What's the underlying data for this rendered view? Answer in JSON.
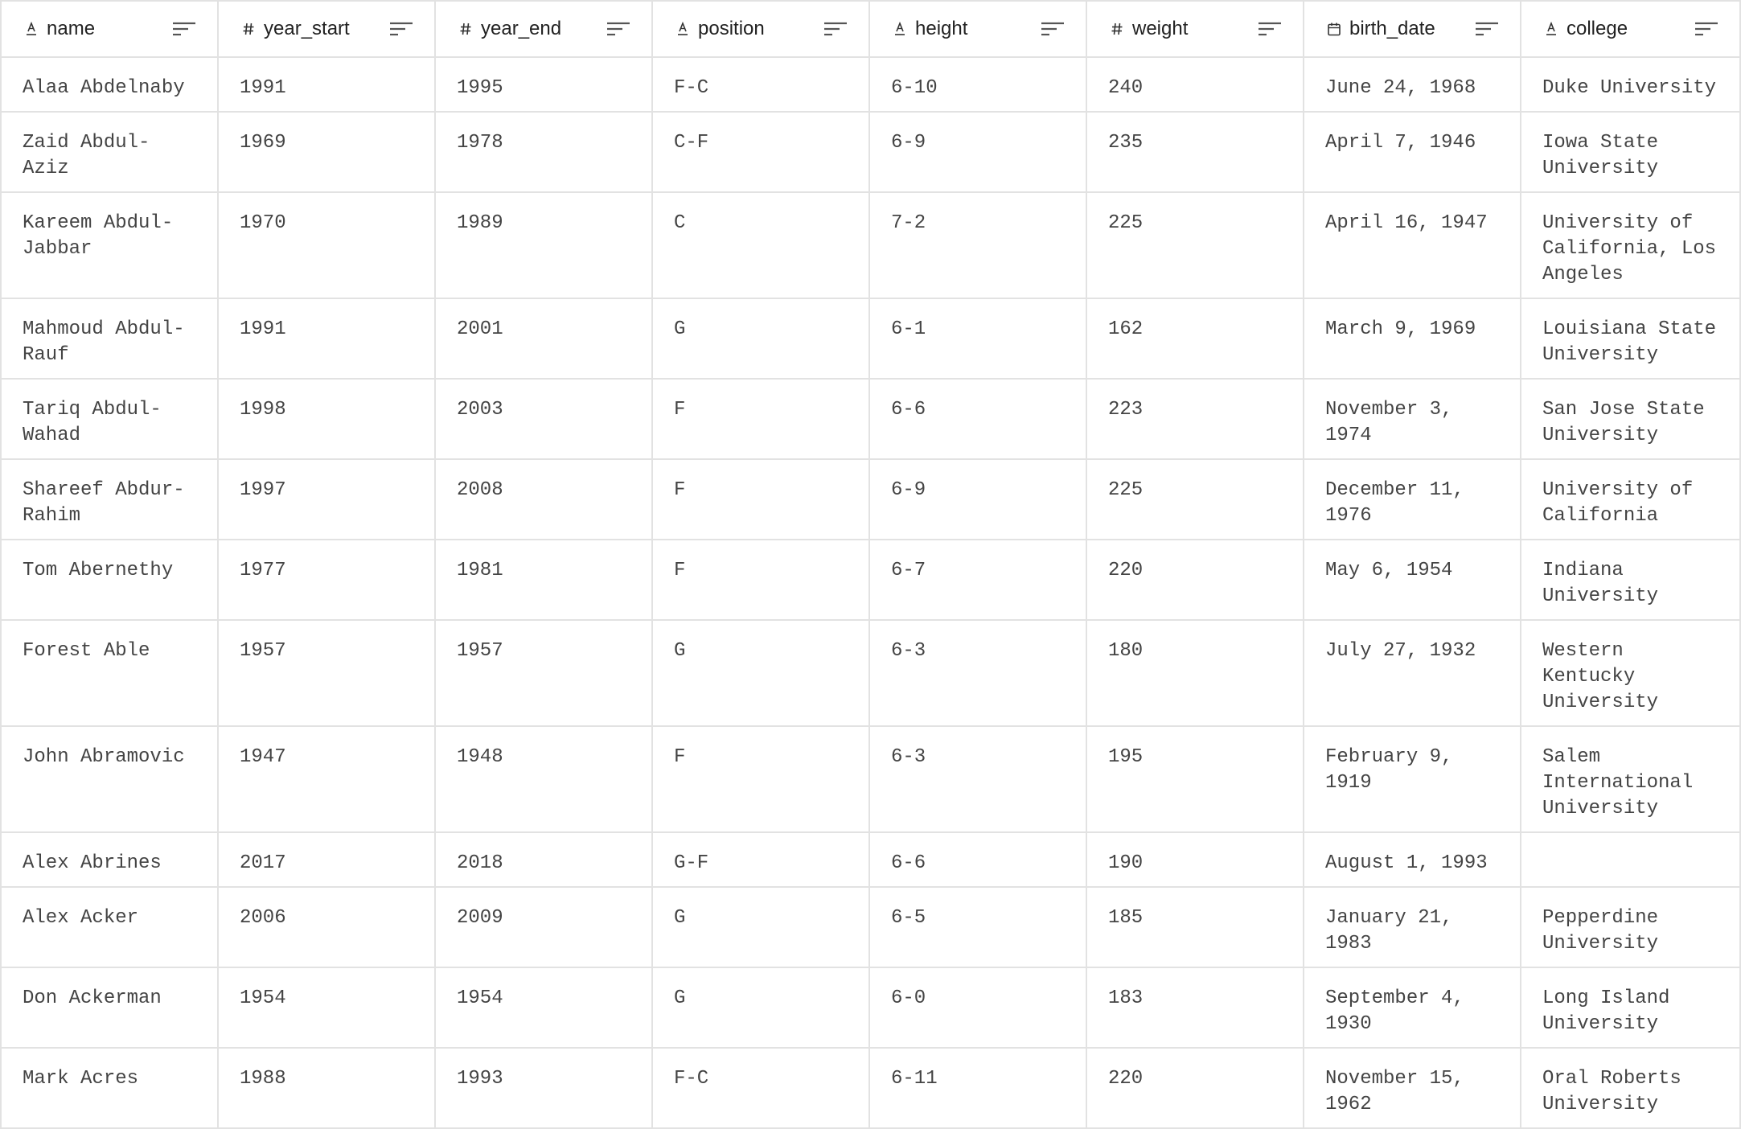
{
  "columns": [
    {
      "key": "name",
      "label": "name",
      "type_icon": "text-type-icon"
    },
    {
      "key": "year_start",
      "label": "year_start",
      "type_icon": "number-type-icon"
    },
    {
      "key": "year_end",
      "label": "year_end",
      "type_icon": "number-type-icon"
    },
    {
      "key": "position",
      "label": "position",
      "type_icon": "text-type-icon"
    },
    {
      "key": "height",
      "label": "height",
      "type_icon": "text-type-icon"
    },
    {
      "key": "weight",
      "label": "weight",
      "type_icon": "number-type-icon"
    },
    {
      "key": "birth_date",
      "label": "birth_date",
      "type_icon": "calendar-type-icon"
    },
    {
      "key": "college",
      "label": "college",
      "type_icon": "text-type-icon"
    }
  ],
  "rows": [
    {
      "name": "Alaa Abdelnaby",
      "year_start": "1991",
      "year_end": "1995",
      "position": "F-C",
      "height": "6-10",
      "weight": "240",
      "birth_date": "June 24, 1968",
      "college": "Duke University"
    },
    {
      "name": "Zaid Abdul-Aziz",
      "year_start": "1969",
      "year_end": "1978",
      "position": "C-F",
      "height": "6-9",
      "weight": "235",
      "birth_date": "April 7, 1946",
      "college": "Iowa State University"
    },
    {
      "name": "Kareem Abdul-Jabbar",
      "year_start": "1970",
      "year_end": "1989",
      "position": "C",
      "height": "7-2",
      "weight": "225",
      "birth_date": "April 16, 1947",
      "college": "University of California, Los Angeles"
    },
    {
      "name": "Mahmoud Abdul-Rauf",
      "year_start": "1991",
      "year_end": "2001",
      "position": "G",
      "height": "6-1",
      "weight": "162",
      "birth_date": "March 9, 1969",
      "college": "Louisiana State University"
    },
    {
      "name": "Tariq Abdul-Wahad",
      "year_start": "1998",
      "year_end": "2003",
      "position": "F",
      "height": "6-6",
      "weight": "223",
      "birth_date": "November 3, 1974",
      "college": "San Jose State University"
    },
    {
      "name": "Shareef Abdur-Rahim",
      "year_start": "1997",
      "year_end": "2008",
      "position": "F",
      "height": "6-9",
      "weight": "225",
      "birth_date": "December 11, 1976",
      "college": "University of California"
    },
    {
      "name": "Tom Abernethy",
      "year_start": "1977",
      "year_end": "1981",
      "position": "F",
      "height": "6-7",
      "weight": "220",
      "birth_date": "May 6, 1954",
      "college": "Indiana University"
    },
    {
      "name": "Forest Able",
      "year_start": "1957",
      "year_end": "1957",
      "position": "G",
      "height": "6-3",
      "weight": "180",
      "birth_date": "July 27, 1932",
      "college": "Western Kentucky University"
    },
    {
      "name": "John Abramovic",
      "year_start": "1947",
      "year_end": "1948",
      "position": "F",
      "height": "6-3",
      "weight": "195",
      "birth_date": "February 9, 1919",
      "college": "Salem International University"
    },
    {
      "name": "Alex Abrines",
      "year_start": "2017",
      "year_end": "2018",
      "position": "G-F",
      "height": "6-6",
      "weight": "190",
      "birth_date": "August 1, 1993",
      "college": ""
    },
    {
      "name": "Alex Acker",
      "year_start": "2006",
      "year_end": "2009",
      "position": "G",
      "height": "6-5",
      "weight": "185",
      "birth_date": "January 21, 1983",
      "college": "Pepperdine University"
    },
    {
      "name": "Don Ackerman",
      "year_start": "1954",
      "year_end": "1954",
      "position": "G",
      "height": "6-0",
      "weight": "183",
      "birth_date": "September 4, 1930",
      "college": "Long Island University"
    },
    {
      "name": "Mark Acres",
      "year_start": "1988",
      "year_end": "1993",
      "position": "F-C",
      "height": "6-11",
      "weight": "220",
      "birth_date": "November 15, 1962",
      "college": "Oral Roberts University"
    }
  ]
}
